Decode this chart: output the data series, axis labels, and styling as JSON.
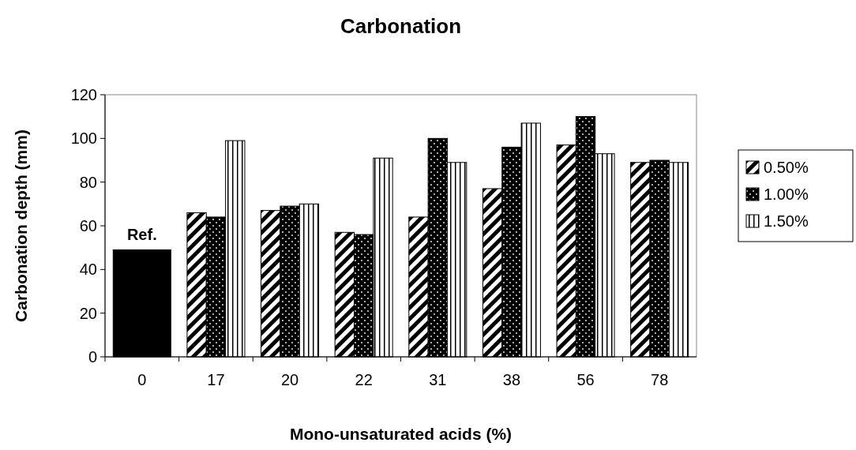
{
  "chart_data": {
    "type": "bar",
    "title": "Carbonation",
    "xlabel": "Mono-unsaturated acids (%)",
    "ylabel": "Carbonation depth (mm)",
    "categories": [
      "0",
      "17",
      "20",
      "22",
      "31",
      "38",
      "56",
      "78"
    ],
    "series": [
      {
        "color": "#000000",
        "values": [
          49,
          null,
          null,
          null,
          null,
          null,
          null,
          null
        ]
      },
      {
        "name": "0.50%",
        "color": "#000000",
        "values": [
          null,
          66,
          67,
          57,
          64,
          77,
          97,
          89
        ]
      },
      {
        "name": "1.00%",
        "color": "#000000",
        "values": [
          null,
          64,
          69,
          56,
          100,
          96,
          110,
          90
        ]
      },
      {
        "name": "1.50%",
        "color": "#000000",
        "values": [
          null,
          99,
          70,
          91,
          89,
          107,
          93,
          89
        ]
      }
    ],
    "annotations": [
      {
        "text": "Ref.",
        "x": "0",
        "y": 49
      }
    ],
    "ylim": [
      0,
      120
    ],
    "yticks": [
      0,
      20,
      40,
      60,
      80,
      100,
      120
    ],
    "grid": false,
    "legend": "right"
  }
}
